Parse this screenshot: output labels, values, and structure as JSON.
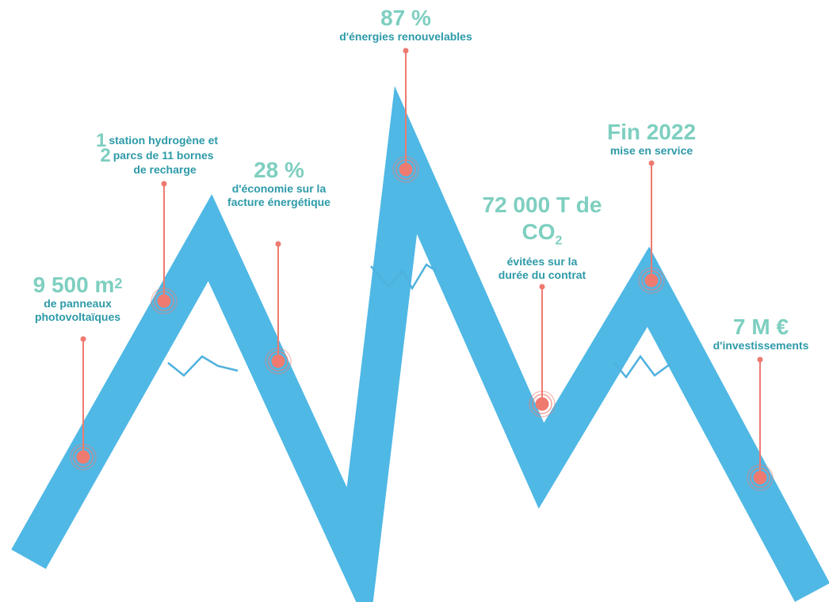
{
  "colors": {
    "band": "#4fb8e5",
    "ridge": "#4fb1de",
    "marker": "#ee7a70",
    "value_text": "#7ecfc0",
    "caption_text": "#2d9aa8"
  },
  "stats": {
    "panels": {
      "value": "9 500 m",
      "sup": "2",
      "caption_1": "de panneaux",
      "caption_2": "photovoltaïques"
    },
    "hydrogen": {
      "n1": "1",
      "n2": "2",
      "line_1": "station hydrogène et",
      "line_2": "parcs de 11 bornes",
      "line_3": "de recharge"
    },
    "savings": {
      "value": "28 %",
      "caption_1": "d'économie sur la",
      "caption_2": "facture énergétique"
    },
    "renewables": {
      "value": "87 %",
      "caption": "d'énergies renouvelables"
    },
    "co2": {
      "value_1": "72 000 T de",
      "value_2_main": "CO",
      "value_2_sub": "2",
      "caption_1": "évitées sur la",
      "caption_2": "durée du contrat"
    },
    "service": {
      "value": "Fin 2022",
      "caption": "mise en service"
    },
    "investment": {
      "value": "7 M €",
      "caption": "d'investissements"
    }
  }
}
